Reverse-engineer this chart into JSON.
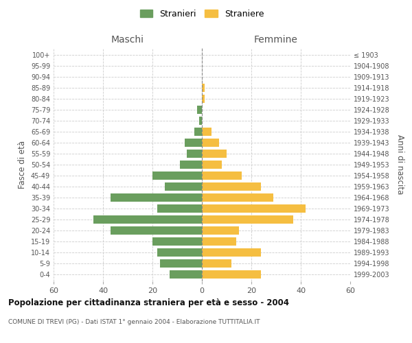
{
  "age_groups": [
    "0-4",
    "5-9",
    "10-14",
    "15-19",
    "20-24",
    "25-29",
    "30-34",
    "35-39",
    "40-44",
    "45-49",
    "50-54",
    "55-59",
    "60-64",
    "65-69",
    "70-74",
    "75-79",
    "80-84",
    "85-89",
    "90-94",
    "95-99",
    "100+"
  ],
  "birth_years": [
    "1999-2003",
    "1994-1998",
    "1989-1993",
    "1984-1988",
    "1979-1983",
    "1974-1978",
    "1969-1973",
    "1964-1968",
    "1959-1963",
    "1954-1958",
    "1949-1953",
    "1944-1948",
    "1939-1943",
    "1934-1938",
    "1929-1933",
    "1924-1928",
    "1919-1923",
    "1914-1918",
    "1909-1913",
    "1904-1908",
    "≤ 1903"
  ],
  "males": [
    13,
    17,
    18,
    20,
    37,
    44,
    18,
    37,
    15,
    20,
    9,
    6,
    7,
    3,
    1,
    2,
    0,
    0,
    0,
    0,
    0
  ],
  "females": [
    24,
    12,
    24,
    14,
    15,
    37,
    42,
    29,
    24,
    16,
    8,
    10,
    7,
    4,
    0,
    0,
    1,
    1,
    0,
    0,
    0
  ],
  "male_color": "#6a9e5e",
  "female_color": "#f5be41",
  "title": "Popolazione per cittadinanza straniera per età e sesso - 2004",
  "subtitle": "COMUNE DI TREVI (PG) - Dati ISTAT 1° gennaio 2004 - Elaborazione TUTTITALIA.IT",
  "xlabel_left": "Maschi",
  "xlabel_right": "Femmine",
  "ylabel_left": "Fasce di età",
  "ylabel_right": "Anni di nascita",
  "legend_males": "Stranieri",
  "legend_females": "Straniere",
  "xlim": 60,
  "background_color": "#ffffff",
  "grid_color": "#cccccc",
  "bar_height": 0.75
}
